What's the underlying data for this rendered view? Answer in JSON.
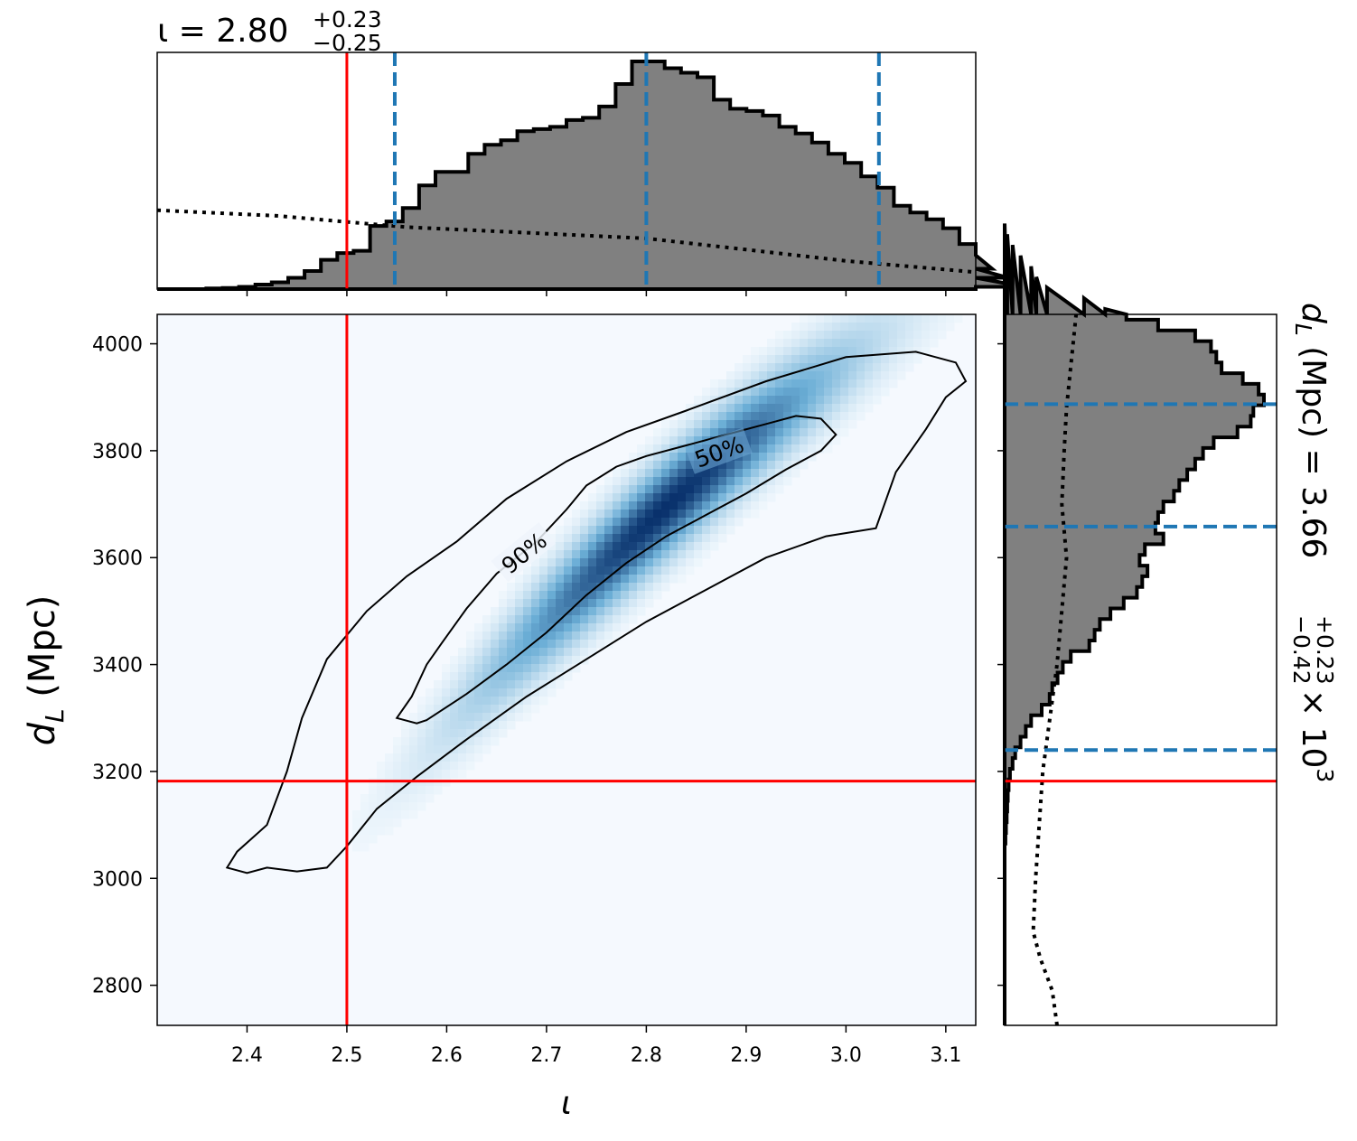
{
  "chart_data": {
    "type": "corner-plot",
    "parameters": [
      "iota",
      "luminosity_distance"
    ],
    "colors": {
      "injection": "#ff0000",
      "quantile": "#1f77b4",
      "histogram_fill": "#808080",
      "histogram_edge": "#000000",
      "prior": "#000000",
      "density_cmap_low": "#f7fbff",
      "density_cmap_high": "#08306b"
    },
    "iota": {
      "symbol": "ι",
      "xlabel": "ι",
      "title": {
        "prefix": "ι = ",
        "median": "2.80",
        "plus": "+0.23",
        "minus": "−0.25"
      },
      "xlim": [
        2.31,
        3.13
      ],
      "ticks": [
        2.4,
        2.5,
        2.6,
        2.7,
        2.8,
        2.9,
        3.0,
        3.1
      ],
      "tick_labels": [
        "2.4",
        "2.5",
        "2.6",
        "2.7",
        "2.8",
        "2.9",
        "3.0",
        "3.1"
      ],
      "injection": 2.5,
      "quantiles": [
        2.548,
        2.8,
        3.033
      ],
      "hist_start": 2.31,
      "hist_bin_width": 0.0164,
      "hist_counts": [
        0,
        0,
        0,
        0.3,
        0.5,
        1,
        2,
        3,
        5,
        8,
        13,
        16,
        17,
        28,
        30,
        36,
        46,
        52,
        52,
        60,
        64,
        66,
        70,
        71,
        72,
        75,
        76,
        81,
        91,
        101,
        101,
        98,
        96,
        94,
        84,
        80,
        79,
        77,
        72,
        69,
        65,
        60,
        56,
        50,
        45,
        37,
        34,
        31,
        27,
        20,
        15,
        9,
        5,
        1
      ],
      "hist_max": 101,
      "prior_points": [
        [
          2.31,
          14
        ],
        [
          2.43,
          13
        ],
        [
          2.56,
          11
        ],
        [
          2.68,
          10
        ],
        [
          2.8,
          9
        ],
        [
          2.9,
          7
        ],
        [
          3.0,
          5
        ],
        [
          3.13,
          3
        ]
      ]
    },
    "dist": {
      "ylabel_main": "d",
      "ylabel_sub": "L",
      "ylabel_unit": " (Mpc)",
      "title": {
        "prefix": "d",
        "sub": "L",
        "unit": " (Mpc) = ",
        "median": "3.66",
        "plus": "+0.23",
        "minus": "−0.42",
        "suffix": " × 10",
        "exp": "3"
      },
      "ylim": [
        2725,
        4055
      ],
      "ticks": [
        2800,
        3000,
        3200,
        3400,
        3600,
        3800,
        4000
      ],
      "tick_labels": [
        "2800",
        "3000",
        "3200",
        "3400",
        "3600",
        "3800",
        "4000"
      ],
      "injection": 3182,
      "quantiles": [
        3240,
        3658,
        3887
      ],
      "hist_start": 2725,
      "hist_bin_width": 20,
      "hist_counts": [
        0,
        0,
        0,
        0,
        0,
        0,
        0,
        0,
        0,
        0,
        0,
        0,
        0,
        0,
        0,
        0,
        0,
        0.3,
        0.5,
        0.8,
        1,
        1.2,
        1.5,
        2,
        3,
        4,
        6,
        8,
        10,
        14,
        17,
        18,
        20,
        22,
        25,
        32,
        34,
        36,
        40,
        45,
        50,
        52,
        54,
        51,
        53,
        60,
        57,
        58,
        60,
        64,
        66,
        69,
        72,
        75,
        79,
        88,
        93,
        94,
        98,
        96,
        90,
        82,
        80,
        78,
        72,
        58,
        46,
        38,
        30,
        16,
        12,
        10,
        6,
        3,
        1,
        0
      ],
      "hist_max": 98,
      "prior_points": [
        [
          2725,
          22
        ],
        [
          2790,
          20
        ],
        [
          2850,
          15
        ],
        [
          2900,
          12
        ],
        [
          3000,
          13
        ],
        [
          3200,
          16
        ],
        [
          3400,
          22
        ],
        [
          3600,
          26
        ],
        [
          3700,
          24
        ],
        [
          3800,
          25
        ],
        [
          3880,
          26
        ],
        [
          4055,
          30
        ]
      ]
    },
    "joint": {
      "contour_labels": [
        "50%",
        "90%"
      ],
      "contour_50": [
        [
          2.58,
          3296
        ],
        [
          2.62,
          3345
        ],
        [
          2.66,
          3400
        ],
        [
          2.7,
          3460
        ],
        [
          2.74,
          3530
        ],
        [
          2.78,
          3590
        ],
        [
          2.82,
          3640
        ],
        [
          2.86,
          3680
        ],
        [
          2.9,
          3720
        ],
        [
          2.94,
          3765
        ],
        [
          2.975,
          3800
        ],
        [
          2.99,
          3830
        ],
        [
          2.975,
          3860
        ],
        [
          2.95,
          3865
        ],
        [
          2.92,
          3850
        ],
        [
          2.88,
          3830
        ],
        [
          2.84,
          3810
        ],
        [
          2.8,
          3790
        ],
        [
          2.77,
          3770
        ],
        [
          2.74,
          3735
        ],
        [
          2.72,
          3690
        ],
        [
          2.69,
          3630
        ],
        [
          2.65,
          3570
        ],
        [
          2.62,
          3505
        ],
        [
          2.595,
          3440
        ],
        [
          2.58,
          3400
        ],
        [
          2.565,
          3340
        ],
        [
          2.55,
          3300
        ],
        [
          2.57,
          3290
        ]
      ],
      "contour_90": [
        [
          2.45,
          3013
        ],
        [
          2.48,
          3020
        ],
        [
          2.5,
          3060
        ],
        [
          2.53,
          3130
        ],
        [
          2.57,
          3190
        ],
        [
          2.62,
          3260
        ],
        [
          2.68,
          3340
        ],
        [
          2.74,
          3410
        ],
        [
          2.8,
          3480
        ],
        [
          2.86,
          3540
        ],
        [
          2.92,
          3600
        ],
        [
          2.98,
          3640
        ],
        [
          3.03,
          3655
        ],
        [
          3.05,
          3760
        ],
        [
          3.08,
          3840
        ],
        [
          3.1,
          3900
        ],
        [
          3.12,
          3930
        ],
        [
          3.11,
          3965
        ],
        [
          3.07,
          3985
        ],
        [
          3.0,
          3975
        ],
        [
          2.92,
          3930
        ],
        [
          2.84,
          3875
        ],
        [
          2.78,
          3835
        ],
        [
          2.72,
          3780
        ],
        [
          2.66,
          3710
        ],
        [
          2.61,
          3630
        ],
        [
          2.56,
          3565
        ],
        [
          2.52,
          3500
        ],
        [
          2.48,
          3410
        ],
        [
          2.455,
          3300
        ],
        [
          2.44,
          3200
        ],
        [
          2.42,
          3100
        ],
        [
          2.39,
          3050
        ],
        [
          2.38,
          3020
        ],
        [
          2.4,
          3010
        ],
        [
          2.42,
          3020
        ]
      ]
    }
  }
}
